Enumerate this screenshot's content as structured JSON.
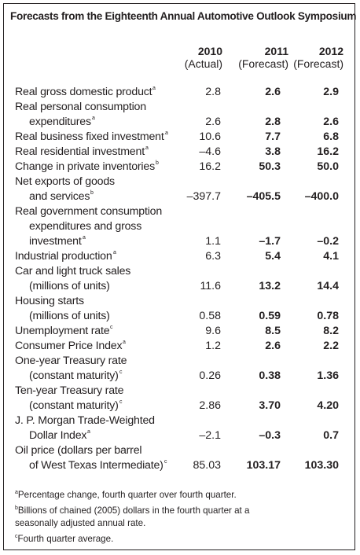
{
  "title": "Forecasts from the Eighteenth Annual Automotive Outlook Symposium",
  "columns": [
    {
      "year": "2010",
      "sub": "(Actual)"
    },
    {
      "year": "2011",
      "sub": "(Forecast)"
    },
    {
      "year": "2012",
      "sub": "(Forecast)"
    }
  ],
  "rows": [
    {
      "label": "Real gross domestic product",
      "sup": "a",
      "v1": "2.8",
      "v2": "2.6",
      "v3": "2.9"
    },
    {
      "label": "Real personal consumption",
      "cont": "expenditures",
      "sup": "a",
      "v1": "2.6",
      "v2": "2.8",
      "v3": "2.6"
    },
    {
      "label": "Real business fixed investment",
      "sup": "a",
      "v1": "10.6",
      "v2": "7.7",
      "v3": "6.8"
    },
    {
      "label": "Real residential investment",
      "sup": "a",
      "v1": "–4.6",
      "v2": "3.8",
      "v3": "16.2"
    },
    {
      "label": "Change in private inventories",
      "sup": "b",
      "v1": "16.2",
      "v2": "50.3",
      "v3": "50.0"
    },
    {
      "label": "Net exports of goods",
      "cont": "and services",
      "sup": "b",
      "v1": "–397.7",
      "v2": "–405.5",
      "v3": "–400.0"
    },
    {
      "label": "Real government consumption",
      "cont1": "expenditures and gross",
      "cont": "investment",
      "sup": "a",
      "v1": "1.1",
      "v2": "–1.7",
      "v3": "–0.2"
    },
    {
      "label": "Industrial production",
      "sup": "a",
      "v1": "6.3",
      "v2": "5.4",
      "v3": "4.1"
    },
    {
      "label": "Car and light truck sales",
      "cont": "(millions of units)",
      "sup": "",
      "v1": "11.6",
      "v2": "13.2",
      "v3": "14.4"
    },
    {
      "label": "Housing starts",
      "cont": "(millions of units)",
      "sup": "",
      "v1": "0.58",
      "v2": "0.59",
      "v3": "0.78"
    },
    {
      "label": "Unemployment rate",
      "sup": "c",
      "v1": "9.6",
      "v2": "8.5",
      "v3": "8.2"
    },
    {
      "label": "Consumer Price Index",
      "sup": "a",
      "v1": "1.2",
      "v2": "2.6",
      "v3": "2.2"
    },
    {
      "label": "One-year Treasury rate",
      "cont": "(constant maturity)",
      "sup": "c",
      "v1": "0.26",
      "v2": "0.38",
      "v3": "1.36"
    },
    {
      "label": "Ten-year Treasury rate",
      "cont": "(constant maturity)",
      "sup": "c",
      "v1": "2.86",
      "v2": "3.70",
      "v3": "4.20"
    },
    {
      "label": "J. P. Morgan Trade-Weighted",
      "cont": "Dollar Index",
      "sup": "a",
      "v1": "–2.1",
      "v2": "–0.3",
      "v3": "0.7"
    },
    {
      "label": "Oil price (dollars per barrel",
      "cont": "of West Texas Intermediate)",
      "sup": "c",
      "v1": "85.03",
      "v2": "103.17",
      "v3": "103.30"
    }
  ],
  "notes": {
    "a_mark": "a",
    "a": "Percentage change, fourth quarter over fourth quarter.",
    "b_mark": "b",
    "b1": "Billions of chained (2005) dollars in the fourth quarter at a",
    "b2": "seasonally adjusted annual rate.",
    "c_mark": "c",
    "c": "Fourth quarter average."
  }
}
